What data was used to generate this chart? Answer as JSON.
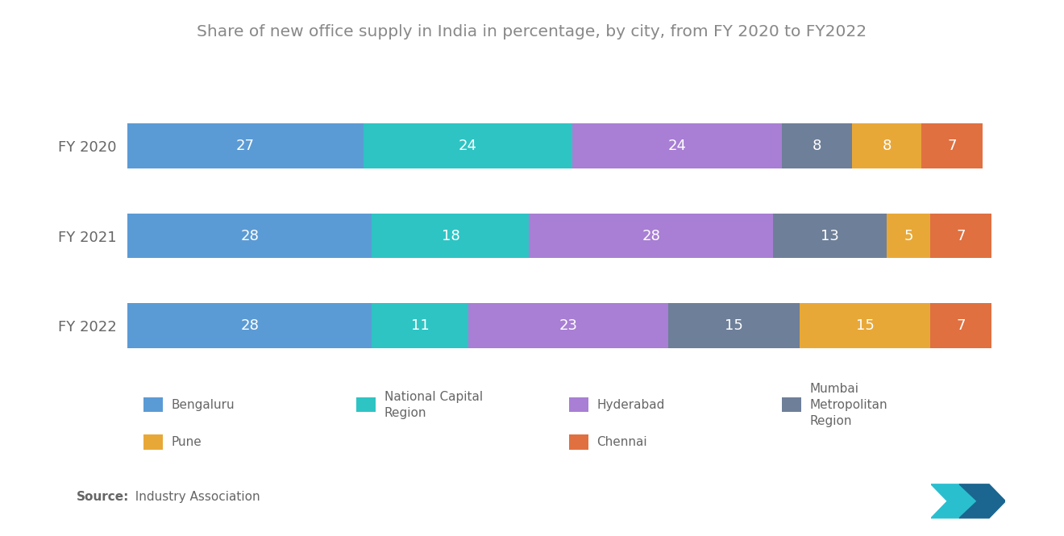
{
  "title": "Share of new office supply in India in percentage, by city, from FY 2020 to FY2022",
  "years": [
    "FY 2020",
    "FY 2021",
    "FY 2022"
  ],
  "categories": [
    "Bengaluru",
    "National Capital\nRegion",
    "Hyderabad",
    "Mumbai\nMetropolitan\nRegion",
    "Pune",
    "Chennai"
  ],
  "legend_order": [
    0,
    1,
    2,
    3,
    4,
    5
  ],
  "legend_cols": 4,
  "colors": [
    "#5B9BD5",
    "#2EC4C4",
    "#A87FD4",
    "#6E7F99",
    "#E8A838",
    "#E07040"
  ],
  "data": [
    [
      27,
      24,
      24,
      8,
      8,
      7
    ],
    [
      28,
      18,
      28,
      13,
      5,
      7
    ],
    [
      28,
      11,
      23,
      15,
      15,
      7
    ]
  ],
  "background_color": "#ffffff",
  "title_color": "#888888",
  "label_color": "#666666",
  "bar_height": 0.5,
  "bar_gap": 0.85,
  "source_bold": "Source:",
  "source_rest": "  Industry Association",
  "title_fontsize": 14.5,
  "label_fontsize": 13,
  "legend_fontsize": 11,
  "source_fontsize": 11,
  "ytick_fontsize": 13
}
